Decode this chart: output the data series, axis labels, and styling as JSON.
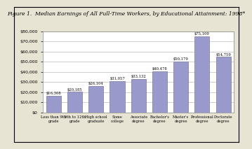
{
  "title": "Figure 1.  Median Earnings of All Full-Time Workers, by Educational Attainment: 1998*",
  "categories": [
    "Less than 9th\ngrade",
    "9th to 12th\ngrade",
    "High school\ngraduate",
    "Some\ncollege",
    "Associate\ndegree",
    "Bachelor's\ndegree",
    "Master's\ndegree",
    "Professional\ndegree",
    "Doctorate\ndegree"
  ],
  "values": [
    16308,
    20185,
    26104,
    31057,
    33132,
    40478,
    50179,
    75109,
    54759
  ],
  "bar_labels": [
    "$16,308",
    "$20,185",
    "$26,104",
    "$31,057",
    "$33,132",
    "$40,478",
    "$50,179",
    "$75,109",
    "$54,759"
  ],
  "bar_color": "#9999cc",
  "bar_edge_color": "#777799",
  "background_color": "#e8e4d4",
  "plot_background_color": "#ffffff",
  "ylim": [
    0,
    80000
  ],
  "ytick_step": 10000,
  "title_fontsize": 5.5,
  "value_fontsize": 3.8,
  "xtick_fontsize": 3.8,
  "ytick_fontsize": 4.5
}
